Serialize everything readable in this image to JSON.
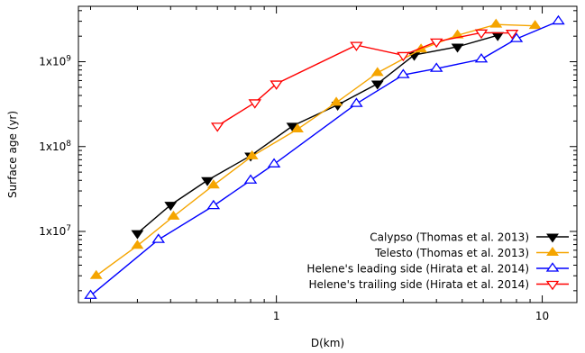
{
  "chart_data": {
    "type": "line",
    "xlabel": "D(km)",
    "ylabel": "Surface age (yr)",
    "x_scale": "log",
    "y_scale": "log",
    "xlim": [
      0.18,
      13.5
    ],
    "ylim": [
      1450000,
      4500000000
    ],
    "x_ticks": [
      {
        "value": 1,
        "label": "1"
      },
      {
        "value": 10,
        "label": "10"
      }
    ],
    "y_ticks": [
      {
        "value": 10000000,
        "label": "1x10"
      },
      {
        "value": 100000000,
        "label": "1x10"
      },
      {
        "value": 1000000000,
        "label": "1x10"
      }
    ],
    "y_tick_exponents": [
      "7",
      "8",
      "9"
    ],
    "grid": false,
    "legend_position": "bottom-right",
    "series": [
      {
        "name": "Calypso (Thomas et al. 2013)",
        "color": "#000000",
        "marker": "triangle-down-filled",
        "x": [
          0.3,
          0.4,
          0.55,
          0.8,
          1.15,
          1.7,
          2.4,
          3.3,
          4.8,
          6.8
        ],
        "y": [
          9500000,
          20500000,
          40000000,
          78000000,
          175000000,
          310000000,
          550000000,
          1200000000,
          1500000000,
          2050000000
        ]
      },
      {
        "name": "Telesto (Thomas et al. 2013)",
        "color": "#f5a500",
        "marker": "triangle-up-filled",
        "x": [
          0.21,
          0.3,
          0.41,
          0.58,
          0.81,
          1.2,
          1.68,
          2.4,
          3.5,
          4.8,
          6.7,
          9.4
        ],
        "y": [
          3000000,
          6800000,
          15000000,
          35000000,
          77000000,
          160000000,
          330000000,
          740000000,
          1400000000,
          2050000000,
          2750000000,
          2650000000
        ]
      },
      {
        "name": "Helene's leading side (Hirata et al. 2014)",
        "color": "#0000ff",
        "marker": "triangle-up-open",
        "x": [
          0.2,
          0.36,
          0.58,
          0.8,
          0.98,
          2.0,
          3.0,
          4.0,
          5.9,
          8.0,
          11.5
        ],
        "y": [
          1750000,
          8000000,
          20000000,
          40000000,
          62000000,
          320000000,
          700000000,
          830000000,
          1070000000,
          1860000000,
          3000000000
        ]
      },
      {
        "name": "Helene's trailing side (Hirata et al. 2014)",
        "color": "#ff0000",
        "marker": "triangle-down-open",
        "x": [
          0.6,
          0.83,
          1.0,
          2.0,
          3.0,
          4.0,
          5.9,
          7.7
        ],
        "y": [
          175000000,
          330000000,
          550000000,
          1570000000,
          1190000000,
          1720000000,
          2200000000,
          2180000000
        ]
      }
    ]
  }
}
